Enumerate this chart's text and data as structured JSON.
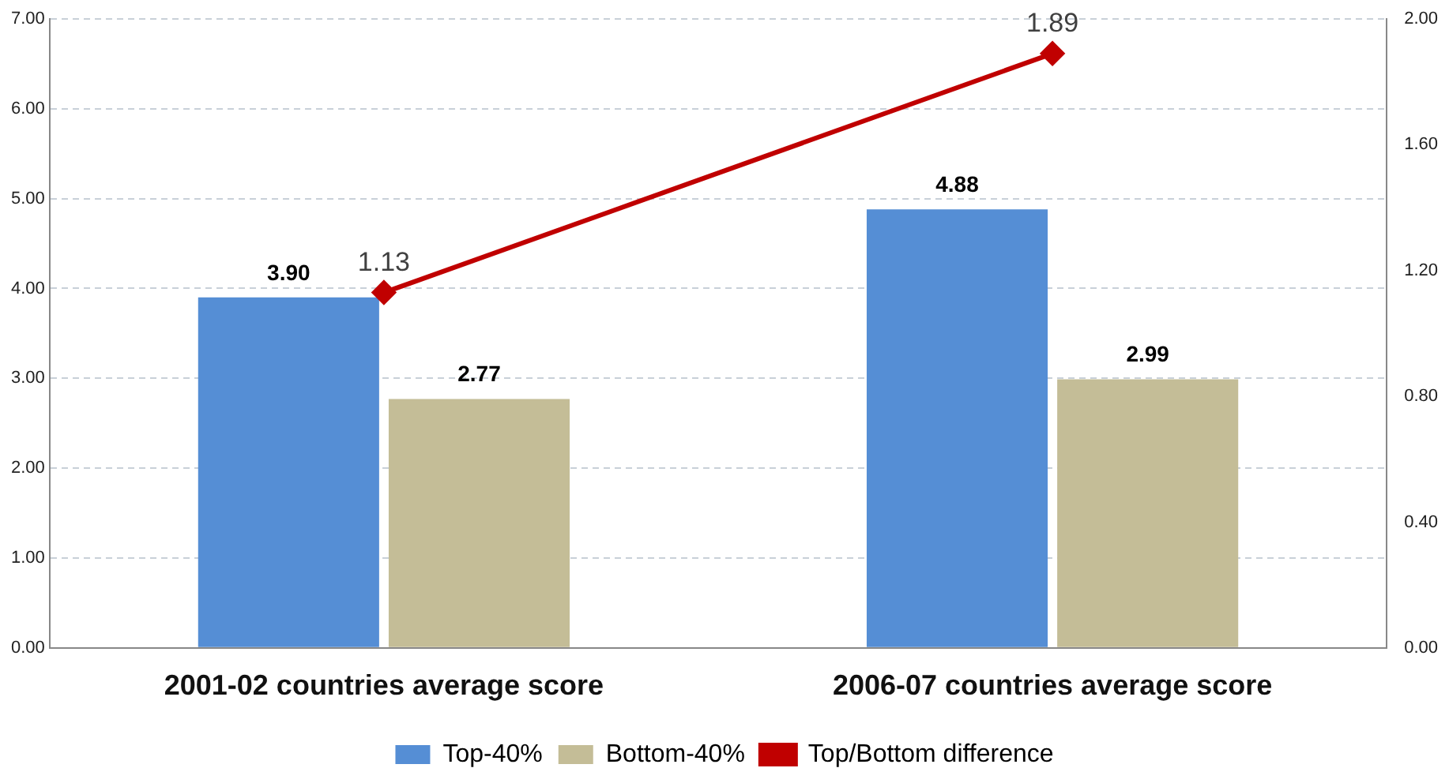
{
  "chart_data": {
    "type": "bar",
    "categories": [
      "2001-02 countries average score",
      "2006-07 countries average score"
    ],
    "series": [
      {
        "name": "Top-40%",
        "color": "#558ed5",
        "values": [
          3.9,
          4.88
        ],
        "value_labels": [
          "3.90",
          "4.88"
        ]
      },
      {
        "name": "Bottom-40%",
        "color": "#c4bd97",
        "values": [
          2.77,
          2.99
        ],
        "value_labels": [
          "2.77",
          "2.99"
        ]
      },
      {
        "name": "Top/Bottom difference",
        "type": "line",
        "axis": "y2",
        "color": "#c00000",
        "values": [
          1.13,
          1.89
        ],
        "value_labels": [
          "1.13",
          "1.89"
        ],
        "marker": "diamond"
      }
    ],
    "ylim": [
      0,
      7
    ],
    "yticks": [
      {
        "value": 0,
        "label": "0.00"
      },
      {
        "value": 1,
        "label": "1.00"
      },
      {
        "value": 2,
        "label": "2.00"
      },
      {
        "value": 3,
        "label": "3.00"
      },
      {
        "value": 4,
        "label": "4.00"
      },
      {
        "value": 5,
        "label": "5.00"
      },
      {
        "value": 6,
        "label": "6.00"
      },
      {
        "value": 7,
        "label": "7.00"
      }
    ],
    "y2lim": [
      0,
      2
    ],
    "y2ticks": [
      {
        "value": 0,
        "label": "0.00"
      },
      {
        "value": 0.4,
        "label": "0.40"
      },
      {
        "value": 0.8,
        "label": "0.80"
      },
      {
        "value": 1.2,
        "label": "1.20"
      },
      {
        "value": 1.6,
        "label": "1.60"
      },
      {
        "value": 2,
        "label": "2.00"
      }
    ],
    "grid": "y",
    "legend": "bottom"
  }
}
